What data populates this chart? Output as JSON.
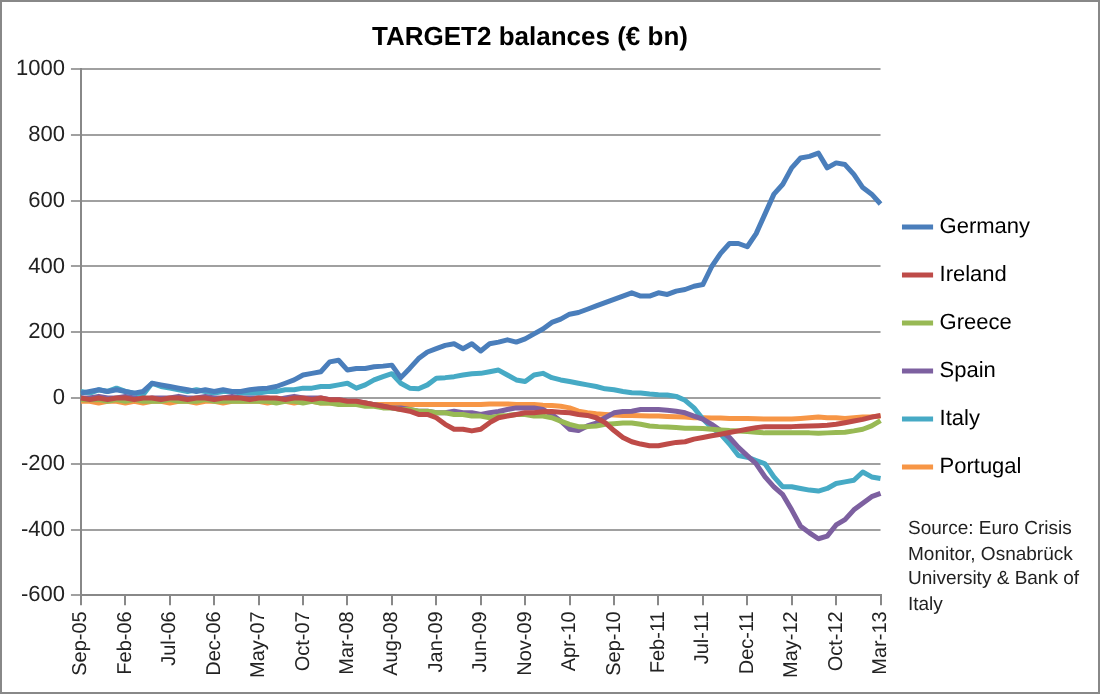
{
  "chart_data": {
    "type": "line",
    "title": "TARGET2 balances (€ bn)",
    "categories": [
      "Sep-05",
      null,
      null,
      null,
      null,
      "Feb-06",
      null,
      null,
      null,
      null,
      "Jul-06",
      null,
      null,
      null,
      null,
      "Dec-06",
      null,
      null,
      null,
      null,
      "May-07",
      null,
      null,
      null,
      null,
      "Oct-07",
      null,
      null,
      null,
      null,
      "Mar-08",
      null,
      null,
      null,
      null,
      "Aug-08",
      null,
      null,
      null,
      null,
      "Jan-09",
      null,
      null,
      null,
      null,
      "Jun-09",
      null,
      null,
      null,
      null,
      "Nov-09",
      null,
      null,
      null,
      null,
      "Apr-10",
      null,
      null,
      null,
      null,
      "Sep-10",
      null,
      null,
      null,
      null,
      "Feb-11",
      null,
      null,
      null,
      null,
      "Jul-11",
      null,
      null,
      null,
      null,
      "Dec-11",
      null,
      null,
      null,
      null,
      "May-12",
      null,
      null,
      null,
      null,
      "Oct-12",
      null,
      null,
      null,
      null,
      "Mar-13"
    ],
    "series": [
      {
        "name": "Germany",
        "color": "#4a7ebb",
        "values": [
          15,
          20,
          25,
          20,
          25,
          20,
          15,
          20,
          45,
          40,
          35,
          30,
          25,
          20,
          25,
          20,
          25,
          20,
          20,
          25,
          28,
          30,
          35,
          45,
          55,
          70,
          75,
          80,
          110,
          115,
          85,
          90,
          90,
          95,
          97,
          100,
          62,
          90,
          120,
          140,
          150,
          160,
          165,
          150,
          165,
          143,
          165,
          170,
          177,
          170,
          180,
          195,
          210,
          230,
          240,
          255,
          260,
          270,
          280,
          290,
          300,
          310,
          320,
          310,
          310,
          320,
          315,
          325,
          330,
          340,
          345,
          400,
          440,
          470,
          470,
          460,
          500,
          560,
          620,
          650,
          700,
          730,
          735,
          745,
          700,
          715,
          710,
          680,
          640,
          620,
          590
        ]
      },
      {
        "name": "Ireland",
        "color": "#be4b48",
        "values": [
          0,
          -5,
          0,
          -5,
          0,
          0,
          -5,
          0,
          0,
          -5,
          0,
          0,
          -5,
          0,
          0,
          -5,
          0,
          0,
          0,
          -5,
          0,
          0,
          0,
          -5,
          0,
          0,
          -5,
          0,
          -5,
          -5,
          -10,
          -10,
          -15,
          -20,
          -25,
          -30,
          -35,
          -40,
          -50,
          -50,
          -60,
          -80,
          -95,
          -95,
          -100,
          -95,
          -75,
          -60,
          -55,
          -50,
          -45,
          -45,
          -42,
          -41,
          -43,
          -45,
          -50,
          -53,
          -60,
          -75,
          -99,
          -120,
          -133,
          -140,
          -145,
          -145,
          -140,
          -135,
          -133,
          -125,
          -120,
          -115,
          -110,
          -105,
          -100,
          -95,
          -90,
          -87,
          -87,
          -87,
          -87,
          -86,
          -85,
          -84,
          -83,
          -80,
          -75,
          -70,
          -65,
          -58,
          -53
        ]
      },
      {
        "name": "Greece",
        "color": "#98b954",
        "values": [
          -5,
          -5,
          -5,
          -10,
          -5,
          -10,
          -5,
          -10,
          -10,
          -10,
          -5,
          -10,
          -10,
          -10,
          -5,
          -10,
          -10,
          -10,
          -10,
          -10,
          -10,
          -10,
          -15,
          -10,
          -10,
          -15,
          -10,
          -15,
          -15,
          -20,
          -20,
          -20,
          -25,
          -25,
          -30,
          -30,
          -35,
          -35,
          -40,
          -40,
          -45,
          -45,
          -50,
          -50,
          -55,
          -55,
          -60,
          -55,
          -53,
          -50,
          -50,
          -55,
          -55,
          -60,
          -70,
          -80,
          -87,
          -87,
          -85,
          -80,
          -78,
          -76,
          -76,
          -80,
          -85,
          -87,
          -88,
          -90,
          -92,
          -92,
          -93,
          -95,
          -97,
          -99,
          -100,
          -102,
          -104,
          -106,
          -106,
          -106,
          -106,
          -106,
          -106,
          -107,
          -106,
          -105,
          -104,
          -100,
          -95,
          -85,
          -69
        ]
      },
      {
        "name": "Spain",
        "color": "#7d60a0",
        "values": [
          0,
          0,
          5,
          0,
          0,
          5,
          0,
          -5,
          0,
          0,
          0,
          5,
          0,
          0,
          5,
          0,
          0,
          5,
          0,
          0,
          0,
          0,
          -5,
          0,
          5,
          0,
          0,
          0,
          -5,
          -5,
          -10,
          -10,
          -15,
          -20,
          -25,
          -30,
          -30,
          -35,
          -40,
          -40,
          -45,
          -45,
          -40,
          -45,
          -45,
          -50,
          -45,
          -41,
          -35,
          -30,
          -30,
          -30,
          -35,
          -50,
          -70,
          -95,
          -99,
          -85,
          -76,
          -60,
          -45,
          -41,
          -40,
          -35,
          -35,
          -35,
          -37,
          -40,
          -45,
          -55,
          -64,
          -80,
          -99,
          -120,
          -150,
          -175,
          -200,
          -240,
          -270,
          -294,
          -340,
          -390,
          -410,
          -428,
          -420,
          -386,
          -370,
          -340,
          -320,
          -300,
          -290
        ]
      },
      {
        "name": "Italy",
        "color": "#46aac5",
        "values": [
          20,
          15,
          25,
          20,
          30,
          20,
          15,
          10,
          45,
          35,
          30,
          25,
          20,
          25,
          20,
          15,
          20,
          20,
          15,
          15,
          15,
          20,
          20,
          25,
          25,
          30,
          30,
          35,
          35,
          40,
          45,
          30,
          40,
          55,
          65,
          74,
          45,
          30,
          28,
          40,
          60,
          62,
          65,
          70,
          74,
          75,
          80,
          85,
          70,
          55,
          50,
          70,
          75,
          62,
          55,
          50,
          45,
          40,
          35,
          28,
          25,
          20,
          16,
          15,
          12,
          10,
          9,
          5,
          -7,
          -30,
          -64,
          -90,
          -110,
          -140,
          -175,
          -180,
          -190,
          -200,
          -240,
          -270,
          -270,
          -275,
          -280,
          -283,
          -275,
          -260,
          -255,
          -250,
          -225,
          -240,
          -245
        ]
      },
      {
        "name": "Portugal",
        "color": "#f79646",
        "values": [
          -10,
          -10,
          -15,
          -10,
          -10,
          -15,
          -10,
          -15,
          -10,
          -10,
          -15,
          -10,
          -10,
          -15,
          -10,
          -10,
          -15,
          -10,
          -10,
          -10,
          -10,
          -15,
          -10,
          -10,
          -15,
          -10,
          -10,
          -15,
          -15,
          -15,
          -15,
          -15,
          -15,
          -20,
          -20,
          -20,
          -20,
          -20,
          -20,
          -20,
          -20,
          -20,
          -20,
          -20,
          -20,
          -20,
          -18,
          -18,
          -18,
          -20,
          -20,
          -20,
          -22,
          -23,
          -25,
          -30,
          -40,
          -45,
          -48,
          -50,
          -52,
          -53,
          -53,
          -54,
          -55,
          -55,
          -56,
          -57,
          -58,
          -60,
          -60,
          -61,
          -61,
          -62,
          -62,
          -62,
          -63,
          -64,
          -64,
          -64,
          -64,
          -62,
          -60,
          -58,
          -60,
          -60,
          -62,
          -60,
          -58,
          -57,
          -55
        ]
      }
    ],
    "ylim": [
      -600,
      1000
    ],
    "yticks": [
      -600,
      -400,
      -200,
      0,
      200,
      400,
      600,
      800,
      1000
    ],
    "grid": "y",
    "legend": "right",
    "marker": "none",
    "line_style": "solid",
    "annotations": [
      "Source: Euro Crisis Monitor, Osnabrück University & Bank of Italy"
    ]
  }
}
